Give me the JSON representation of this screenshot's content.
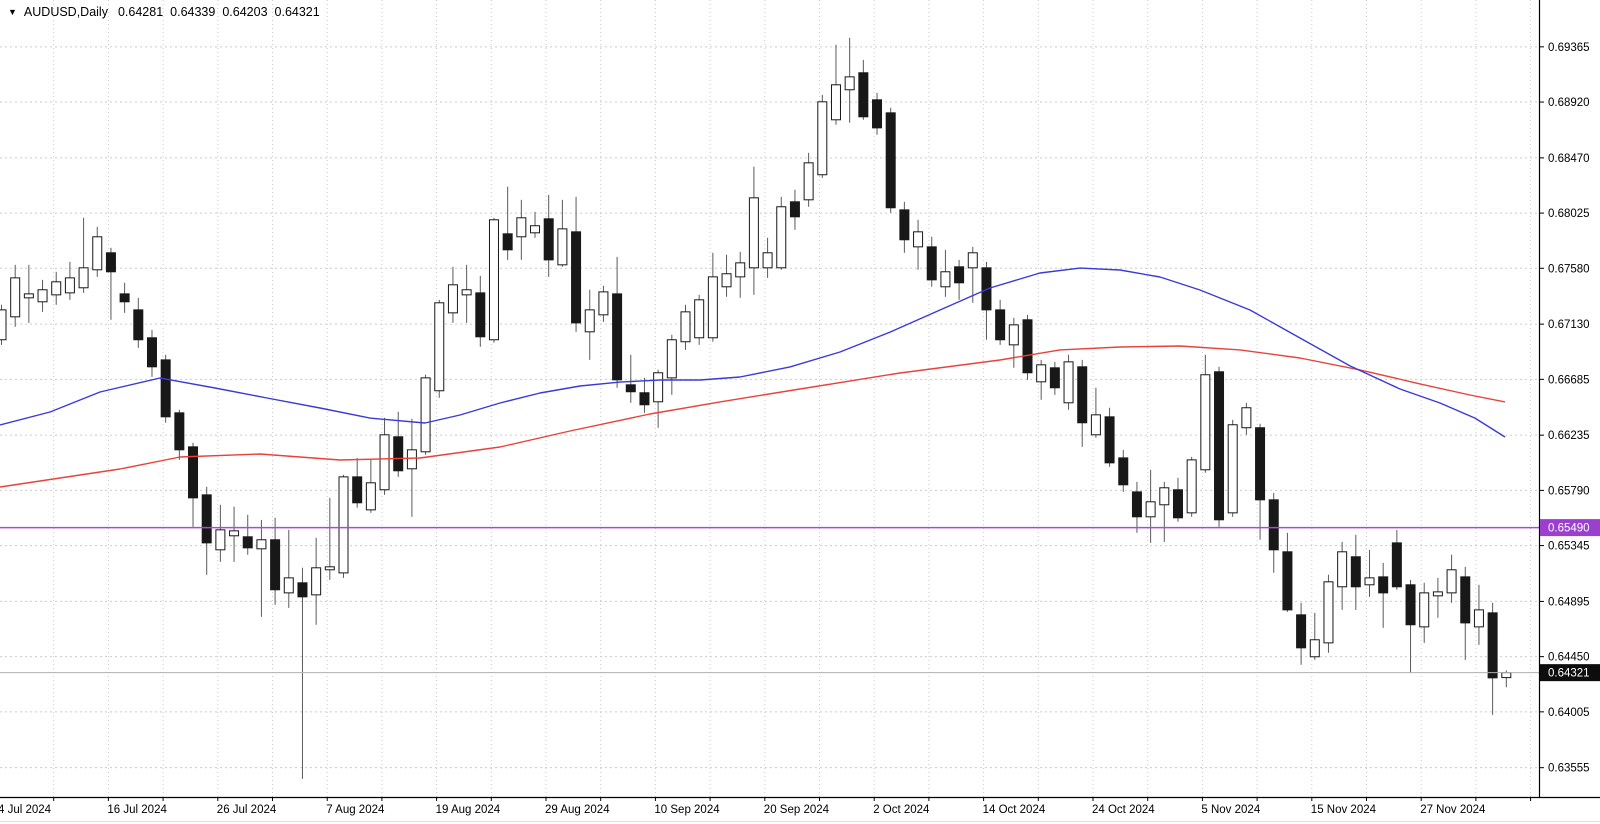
{
  "header": {
    "collapse_icon": "▼",
    "instrument": "AUDUSD,Daily",
    "readout": {
      "open": "0.64281",
      "high": "0.64339",
      "low": "0.64203",
      "close": "0.64321"
    }
  },
  "colors": {
    "background": "#ffffff",
    "grid": "#cbcbcb",
    "axis_line": "#000000",
    "candle_bull_fill": "#ffffff",
    "candle_bear_fill": "#181818",
    "candle_border": "#181818",
    "wick": "#5a5a5a",
    "ma_fast": "#3a3ad9",
    "ma_slow": "#e8423c",
    "level_line": "#a64bd8",
    "level_tag_bg": "#9b3fd0",
    "current_price_line": "#b0b0b0",
    "current_tag_bg": "#0d0d0d",
    "tag_text": "#ffffff",
    "label_text": "#000000"
  },
  "chart_data": {
    "type": "candlestick",
    "symbol": "AUDUSD",
    "timeframe": "Daily",
    "y_axis": {
      "labels": [
        "0.69365",
        "0.68920",
        "0.68470",
        "0.68025",
        "0.67580",
        "0.67130",
        "0.66685",
        "0.66235",
        "0.65790",
        "0.65345",
        "0.64895",
        "0.64450",
        "0.64005",
        "0.63555"
      ],
      "range": [
        0.6333,
        0.6974
      ],
      "grid": true
    },
    "x_axis": {
      "labels": [
        "4 Jul 2024",
        "16 Jul 2024",
        "26 Jul 2024",
        "7 Aug 2024",
        "19 Aug 2024",
        "29 Aug 2024",
        "10 Sep 2024",
        "20 Sep 2024",
        "2 Oct 2024",
        "14 Oct 2024",
        "24 Oct 2024",
        "5 Nov 2024",
        "15 Nov 2024",
        "27 Nov 2024"
      ],
      "candles_per_gridline": 4,
      "candles_per_label": 8
    },
    "level_line": {
      "price": 0.6549,
      "label": "0.65490"
    },
    "current_price": {
      "price": 0.64321,
      "label": "0.64321"
    },
    "candles_ohlc": [
      [
        0.67004,
        0.67286,
        0.66963,
        0.67245
      ],
      [
        0.67189,
        0.67608,
        0.67108,
        0.67503
      ],
      [
        0.67342,
        0.67608,
        0.6714,
        0.67374
      ],
      [
        0.6731,
        0.67487,
        0.67229,
        0.67407
      ],
      [
        0.67366,
        0.67552,
        0.67286,
        0.67471
      ],
      [
        0.67382,
        0.67632,
        0.67326,
        0.67503
      ],
      [
        0.67423,
        0.67987,
        0.67382,
        0.67584
      ],
      [
        0.67568,
        0.67914,
        0.67511,
        0.67834
      ],
      [
        0.67705,
        0.67745,
        0.67165,
        0.67552
      ],
      [
        0.67374,
        0.67463,
        0.67221,
        0.6731
      ],
      [
        0.67245,
        0.67342,
        0.66939,
        0.67004
      ],
      [
        0.6702,
        0.67084,
        0.66705,
        0.66786
      ],
      [
        0.66842,
        0.66883,
        0.66335,
        0.66383
      ],
      [
        0.66415,
        0.6644,
        0.66036,
        0.66117
      ],
      [
        0.66141,
        0.66174,
        0.65496,
        0.6573
      ],
      [
        0.65754,
        0.65819,
        0.6511,
        0.65367
      ],
      [
        0.65311,
        0.65674,
        0.65214,
        0.65472
      ],
      [
        0.65424,
        0.65658,
        0.65214,
        0.65464
      ],
      [
        0.65416,
        0.65593,
        0.65271,
        0.65327
      ],
      [
        0.65319,
        0.65552,
        0.64771,
        0.65392
      ],
      [
        0.65392,
        0.65569,
        0.64868,
        0.64989
      ],
      [
        0.64964,
        0.65472,
        0.64843,
        0.65085
      ],
      [
        0.65045,
        0.65166,
        0.63465,
        0.64932
      ],
      [
        0.64948,
        0.65408,
        0.64707,
        0.65166
      ],
      [
        0.6515,
        0.6573,
        0.65069,
        0.65174
      ],
      [
        0.65125,
        0.65915,
        0.65085,
        0.65899
      ],
      [
        0.65899,
        0.66052,
        0.6565,
        0.6569
      ],
      [
        0.65633,
        0.66036,
        0.65609,
        0.65851
      ],
      [
        0.65795,
        0.66375,
        0.65754,
        0.66238
      ],
      [
        0.66222,
        0.66424,
        0.65899,
        0.65948
      ],
      [
        0.65964,
        0.66367,
        0.65577,
        0.66117
      ],
      [
        0.66101,
        0.66722,
        0.66077,
        0.66697
      ],
      [
        0.66593,
        0.67326,
        0.66536,
        0.67302
      ],
      [
        0.67221,
        0.67592,
        0.6714,
        0.67447
      ],
      [
        0.67366,
        0.67608,
        0.6714,
        0.67407
      ],
      [
        0.67382,
        0.67519,
        0.66947,
        0.67028
      ],
      [
        0.67004,
        0.67987,
        0.6698,
        0.67971
      ],
      [
        0.67858,
        0.68237,
        0.67648,
        0.67729
      ],
      [
        0.67834,
        0.68132,
        0.67648,
        0.67987
      ],
      [
        0.67866,
        0.68035,
        0.67826,
        0.67923
      ],
      [
        0.67979,
        0.68172,
        0.67511,
        0.67648
      ],
      [
        0.67608,
        0.68132,
        0.67592,
        0.67898
      ],
      [
        0.67874,
        0.68156,
        0.67068,
        0.6714
      ],
      [
        0.67068,
        0.67407,
        0.66842,
        0.67245
      ],
      [
        0.67205,
        0.67439,
        0.67148,
        0.6739
      ],
      [
        0.67374,
        0.67672,
        0.66617,
        0.66681
      ],
      [
        0.66641,
        0.66883,
        0.66496,
        0.66585
      ],
      [
        0.66577,
        0.66697,
        0.66415,
        0.6648
      ],
      [
        0.66504,
        0.66762,
        0.66295,
        0.66738
      ],
      [
        0.66697,
        0.67044,
        0.6656,
        0.67004
      ],
      [
        0.66988,
        0.67286,
        0.66923,
        0.67229
      ],
      [
        0.6702,
        0.67366,
        0.66963,
        0.67326
      ],
      [
        0.6702,
        0.67705,
        0.66988,
        0.67511
      ],
      [
        0.67431,
        0.67689,
        0.6735,
        0.67536
      ],
      [
        0.67511,
        0.67713,
        0.67342,
        0.67624
      ],
      [
        0.67584,
        0.68398,
        0.67366,
        0.68148
      ],
      [
        0.67584,
        0.67826,
        0.67503,
        0.67705
      ],
      [
        0.67584,
        0.68156,
        0.67568,
        0.68076
      ],
      [
        0.68116,
        0.68213,
        0.6789,
        0.67995
      ],
      [
        0.68132,
        0.68511,
        0.68076,
        0.6843
      ],
      [
        0.68334,
        0.68978,
        0.68309,
        0.68922
      ],
      [
        0.68777,
        0.69381,
        0.68737,
        0.69059
      ],
      [
        0.69019,
        0.69438,
        0.68753,
        0.69123
      ],
      [
        0.69156,
        0.6926,
        0.68777,
        0.68801
      ],
      [
        0.68938,
        0.68994,
        0.68656,
        0.68712
      ],
      [
        0.68833,
        0.68874,
        0.68027,
        0.68068
      ],
      [
        0.68051,
        0.68116,
        0.67705,
        0.6781
      ],
      [
        0.67753,
        0.67971,
        0.67568,
        0.67874
      ],
      [
        0.67753,
        0.67834,
        0.67431,
        0.67487
      ],
      [
        0.67431,
        0.67729,
        0.6735,
        0.67552
      ],
      [
        0.67592,
        0.67648,
        0.67326,
        0.67463
      ],
      [
        0.67584,
        0.67753,
        0.67302,
        0.67705
      ],
      [
        0.67584,
        0.67632,
        0.67004,
        0.67245
      ],
      [
        0.67245,
        0.67326,
        0.66963,
        0.67004
      ],
      [
        0.66963,
        0.67181,
        0.66778,
        0.67124
      ],
      [
        0.67165,
        0.67205,
        0.66681,
        0.66738
      ],
      [
        0.66665,
        0.66842,
        0.6652,
        0.66802
      ],
      [
        0.66778,
        0.66826,
        0.6656,
        0.66617
      ],
      [
        0.66496,
        0.66883,
        0.6644,
        0.66826
      ],
      [
        0.66786,
        0.66842,
        0.66141,
        0.66335
      ],
      [
        0.66238,
        0.66617,
        0.66214,
        0.66399
      ],
      [
        0.66383,
        0.66456,
        0.6598,
        0.66012
      ],
      [
        0.66052,
        0.66117,
        0.65778,
        0.65835
      ],
      [
        0.65778,
        0.65859,
        0.65448,
        0.65577
      ],
      [
        0.65577,
        0.65956,
        0.65367,
        0.65698
      ],
      [
        0.65674,
        0.65859,
        0.65375,
        0.65811
      ],
      [
        0.65795,
        0.65891,
        0.65537,
        0.65569
      ],
      [
        0.65609,
        0.6606,
        0.65577,
        0.66036
      ],
      [
        0.65956,
        0.66883,
        0.65932,
        0.66722
      ],
      [
        0.66746,
        0.66786,
        0.65496,
        0.65553
      ],
      [
        0.65609,
        0.66359,
        0.65577,
        0.66319
      ],
      [
        0.66295,
        0.66496,
        0.66238,
        0.66456
      ],
      [
        0.66295,
        0.66327,
        0.65392,
        0.65714
      ],
      [
        0.65714,
        0.6577,
        0.65126,
        0.65311
      ],
      [
        0.65295,
        0.65448,
        0.64811,
        0.64827
      ],
      [
        0.64787,
        0.64884,
        0.64384,
        0.64521
      ],
      [
        0.64449,
        0.64803,
        0.64424,
        0.64586
      ],
      [
        0.64561,
        0.6511,
        0.64481,
        0.65053
      ],
      [
        0.65013,
        0.65375,
        0.64827,
        0.65295
      ],
      [
        0.65255,
        0.65432,
        0.64827,
        0.65013
      ],
      [
        0.65029,
        0.65311,
        0.64932,
        0.65085
      ],
      [
        0.65093,
        0.65206,
        0.64682,
        0.64964
      ],
      [
        0.65367,
        0.65472,
        0.64989,
        0.65013
      ],
      [
        0.65029,
        0.65069,
        0.6432,
        0.64707
      ],
      [
        0.6469,
        0.65045,
        0.64561,
        0.64964
      ],
      [
        0.6494,
        0.65085,
        0.64763,
        0.64972
      ],
      [
        0.64964,
        0.65271,
        0.64884,
        0.6515
      ],
      [
        0.65093,
        0.65174,
        0.64424,
        0.64722
      ],
      [
        0.6469,
        0.65029,
        0.64545,
        0.64827
      ],
      [
        0.64803,
        0.64884,
        0.63981,
        0.64279
      ],
      [
        0.64281,
        0.64339,
        0.64203,
        0.64321
      ]
    ],
    "moving_averages": [
      {
        "name": "ma-fast-blue",
        "points": [
          [
            0,
            0.66317
          ],
          [
            50,
            0.66422
          ],
          [
            100,
            0.66583
          ],
          [
            160,
            0.66696
          ],
          [
            215,
            0.66615
          ],
          [
            267,
            0.66535
          ],
          [
            320,
            0.66454
          ],
          [
            370,
            0.66373
          ],
          [
            425,
            0.66333
          ],
          [
            460,
            0.66398
          ],
          [
            500,
            0.66494
          ],
          [
            540,
            0.66575
          ],
          [
            580,
            0.66631
          ],
          [
            620,
            0.66663
          ],
          [
            660,
            0.6668
          ],
          [
            700,
            0.6668
          ],
          [
            740,
            0.66704
          ],
          [
            790,
            0.66785
          ],
          [
            840,
            0.66905
          ],
          [
            890,
            0.67066
          ],
          [
            940,
            0.67244
          ],
          [
            990,
            0.67421
          ],
          [
            1040,
            0.67542
          ],
          [
            1080,
            0.67582
          ],
          [
            1120,
            0.67566
          ],
          [
            1160,
            0.6751
          ],
          [
            1200,
            0.67405
          ],
          [
            1250,
            0.67244
          ],
          [
            1300,
            0.67018
          ],
          [
            1350,
            0.66793
          ],
          [
            1400,
            0.66607
          ],
          [
            1440,
            0.66494
          ],
          [
            1475,
            0.66373
          ],
          [
            1505,
            0.6622
          ]
        ]
      },
      {
        "name": "ma-slow-red",
        "points": [
          [
            0,
            0.65817
          ],
          [
            60,
            0.6589
          ],
          [
            120,
            0.65962
          ],
          [
            180,
            0.66059
          ],
          [
            260,
            0.66083
          ],
          [
            340,
            0.66035
          ],
          [
            420,
            0.66051
          ],
          [
            500,
            0.6614
          ],
          [
            570,
            0.66269
          ],
          [
            650,
            0.66406
          ],
          [
            720,
            0.66503
          ],
          [
            800,
            0.66607
          ],
          [
            900,
            0.66736
          ],
          [
            1000,
            0.66841
          ],
          [
            1060,
            0.66922
          ],
          [
            1120,
            0.66946
          ],
          [
            1180,
            0.66954
          ],
          [
            1240,
            0.66922
          ],
          [
            1300,
            0.66857
          ],
          [
            1360,
            0.66761
          ],
          [
            1420,
            0.66648
          ],
          [
            1470,
            0.66559
          ],
          [
            1505,
            0.66503
          ]
        ]
      }
    ],
    "legend_position": "none",
    "grid_on": true
  }
}
